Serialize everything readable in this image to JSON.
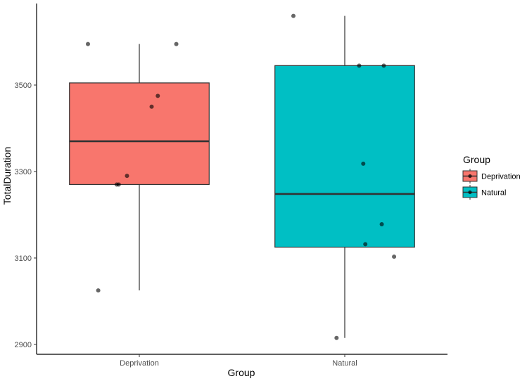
{
  "chart_data": {
    "type": "boxplot",
    "xlabel": "Group",
    "ylabel": "TotalDuration",
    "categories": [
      "Deprivation",
      "Natural"
    ],
    "ylim": [
      2880,
      3720
    ],
    "y_ticks": [
      2900,
      3100,
      3300,
      3500
    ],
    "y_tick_labels": [
      "2900",
      "3100",
      "3300",
      "3500"
    ],
    "groups": [
      {
        "name": "Deprivation",
        "color": "#F8766D",
        "whisker_low": 3025,
        "q1": 3270,
        "median": 3370,
        "q3": 3505,
        "whisker_high": 3595,
        "points": [
          {
            "x_jitter": -0.25,
            "y": 3595
          },
          {
            "x_jitter": 0.18,
            "y": 3595
          },
          {
            "x_jitter": 0.09,
            "y": 3475
          },
          {
            "x_jitter": 0.06,
            "y": 3450
          },
          {
            "x_jitter": -0.06,
            "y": 3290
          },
          {
            "x_jitter": -0.1,
            "y": 3270
          },
          {
            "x_jitter": -0.11,
            "y": 3270
          },
          {
            "x_jitter": -0.2,
            "y": 3025
          }
        ]
      },
      {
        "name": "Natural",
        "color": "#00BFC4",
        "whisker_low": 2915,
        "q1": 3125,
        "median": 3248,
        "q3": 3545,
        "whisker_high": 3660,
        "points": [
          {
            "x_jitter": -0.25,
            "y": 3660
          },
          {
            "x_jitter": 0.07,
            "y": 3545
          },
          {
            "x_jitter": 0.19,
            "y": 3545
          },
          {
            "x_jitter": 0.09,
            "y": 3318
          },
          {
            "x_jitter": 0.18,
            "y": 3178
          },
          {
            "x_jitter": 0.1,
            "y": 3132
          },
          {
            "x_jitter": 0.24,
            "y": 3103
          },
          {
            "x_jitter": -0.04,
            "y": 2915
          }
        ]
      }
    ],
    "legend": {
      "title": "Group",
      "placement": "right",
      "entries": [
        {
          "label": "Deprivation",
          "color": "#F8766D"
        },
        {
          "label": "Natural",
          "color": "#00BFC4"
        }
      ]
    },
    "grid": false
  }
}
